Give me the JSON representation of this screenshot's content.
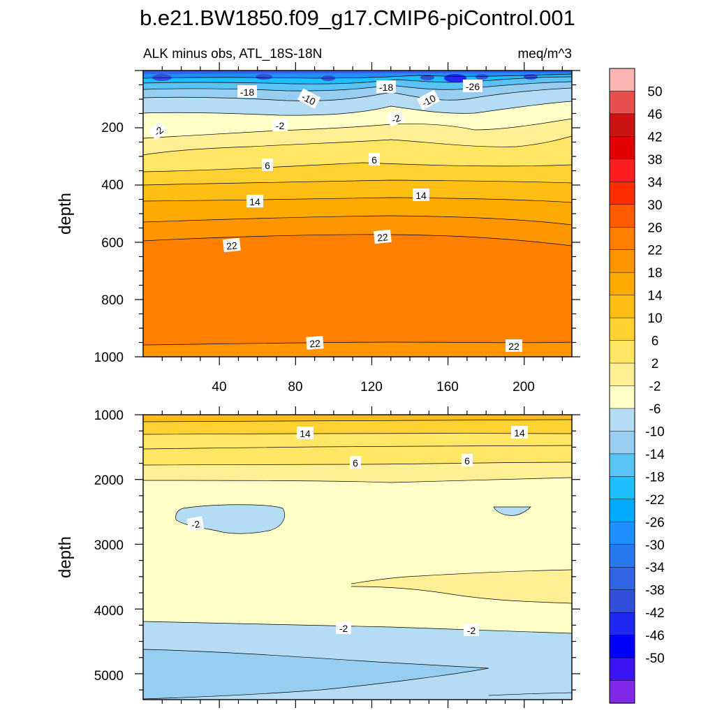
{
  "chart_data": {
    "type": "filled_contour",
    "title": "b.e21.BW1850.f09_g17.CMIP6-piControl.001",
    "left_subtitle": "ALK minus obs, ATL_18S-18N",
    "right_subtitle": "meq/m^3",
    "xlim": [
      0,
      225
    ],
    "x_tick_labels": [
      "40",
      "80",
      "120",
      "160",
      "200"
    ],
    "panels": [
      {
        "name": "upper",
        "ylabel": "depth",
        "ylim": [
          0,
          1000
        ],
        "y_tick_labels": [
          "200",
          "400",
          "600",
          "800",
          "1000"
        ],
        "contour_labels": [
          "-18",
          "-10",
          "-18",
          "-10",
          "-26",
          "-2",
          "-2",
          "-2",
          "6",
          "6",
          "14",
          "14",
          "22",
          "22",
          "22",
          "22"
        ]
      },
      {
        "name": "lower",
        "ylabel": "depth",
        "ylim": [
          1000,
          5400
        ],
        "y_tick_labels": [
          "1000",
          "2000",
          "3000",
          "4000",
          "5000"
        ],
        "contour_labels": [
          "14",
          "14",
          "6",
          "6",
          "-2",
          "-2",
          "-2"
        ]
      }
    ],
    "colorbar": {
      "levels": [
        "-50",
        "-46",
        "-42",
        "-38",
        "-34",
        "-30",
        "-26",
        "-22",
        "-18",
        "-14",
        "-10",
        "-6",
        "-2",
        "2",
        "6",
        "10",
        "14",
        "18",
        "22",
        "26",
        "30",
        "34",
        "38",
        "42",
        "46",
        "50"
      ],
      "colors_top_to_bottom": [
        "#ffb4b4",
        "#e85050",
        "#cd1414",
        "#e10000",
        "#ff1e1e",
        "#ff2d00",
        "#ff5a00",
        "#ff7f00",
        "#ff9600",
        "#ffaa00",
        "#ffbe14",
        "#ffd232",
        "#ffe664",
        "#fff096",
        "#ffffc8",
        "#b4dcf5",
        "#96cdf0",
        "#5ac3f5",
        "#1ebeff",
        "#00aaff",
        "#1e90ff",
        "#2878f0",
        "#3264e6",
        "#3250dc",
        "#1e28f0",
        "#0000ff",
        "#3c14f5",
        "#8228eb"
      ]
    }
  }
}
